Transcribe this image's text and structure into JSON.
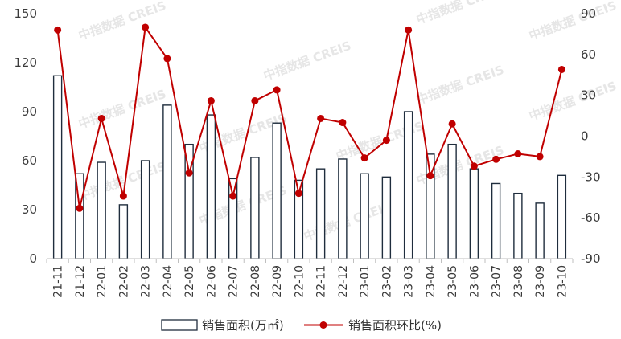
{
  "colors": {
    "bar_fill": "#ffffff",
    "bar_stroke": "#1f2d3d",
    "line": "#c00000",
    "axis": "#bfbfbf",
    "text": "#3a3a3a",
    "watermark": "#e6e6e6"
  },
  "watermark_text": "中指数据 CREIS",
  "chart_data": {
    "type": "bar+line",
    "categories": [
      "21-11",
      "21-12",
      "22-01",
      "22-02",
      "22-03",
      "22-04",
      "22-05",
      "22-06",
      "22-07",
      "22-08",
      "22-09",
      "22-10",
      "22-11",
      "22-12",
      "23-01",
      "23-02",
      "23-03",
      "23-04",
      "23-05",
      "23-06",
      "23-07",
      "23-08",
      "23-09",
      "23-10"
    ],
    "series": [
      {
        "name": "销售面积(万㎡)",
        "type": "bar",
        "axis": "left",
        "values": [
          112,
          52,
          59,
          33,
          60,
          94,
          70,
          88,
          49,
          62,
          83,
          48,
          55,
          61,
          52,
          50,
          90,
          64,
          70,
          55,
          46,
          40,
          34,
          51
        ]
      },
      {
        "name": "销售面积环比(%)",
        "type": "line",
        "axis": "right",
        "values": [
          78,
          -53,
          13,
          -44,
          80,
          57,
          -27,
          26,
          -44,
          26,
          34,
          -42,
          13,
          10,
          -16,
          -3,
          78,
          -29,
          9,
          -22,
          -17,
          -13,
          -15,
          49
        ]
      }
    ],
    "y_left": {
      "ticks": [
        "0",
        "30",
        "60",
        "90",
        "120",
        "150"
      ],
      "min": 0,
      "max": 150
    },
    "y_right": {
      "ticks": [
        "-90",
        "-60",
        "-30",
        "0",
        "30",
        "60",
        "90"
      ],
      "min": -90,
      "max": 90
    },
    "grid": false,
    "legend_position": "bottom"
  }
}
